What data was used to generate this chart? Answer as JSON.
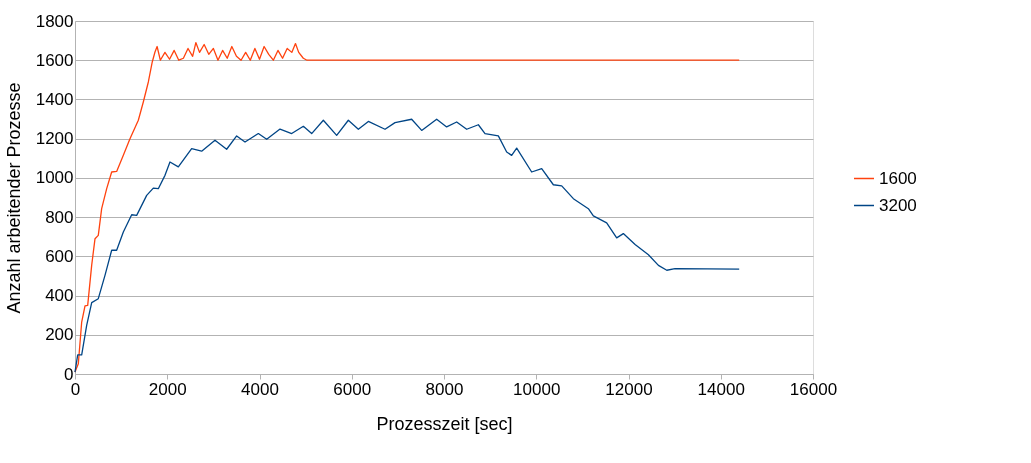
{
  "chart_data": {
    "type": "line",
    "xlabel": "Prozesszeit [sec]",
    "ylabel": "Anzahl arbeitender Prozesse",
    "xlim": [
      0,
      16000
    ],
    "xticks": [
      0,
      2000,
      4000,
      6000,
      8000,
      10000,
      12000,
      14000,
      16000
    ],
    "ylim": [
      0,
      1800
    ],
    "yticks": [
      0,
      200,
      400,
      600,
      800,
      1000,
      1200,
      1400,
      1600,
      1800
    ],
    "grid": "y",
    "legend": "right",
    "marker": "none",
    "line_style": "solid",
    "series": [
      {
        "name": "1600",
        "color": "#ff420e",
        "x": [
          0,
          72,
          145,
          217,
          275,
          362,
          434,
          505,
          578,
          687,
          795,
          903,
          1048,
          1192,
          1373,
          1481,
          1590,
          1675,
          1734,
          1780,
          1850,
          1950,
          2050,
          2150,
          2250,
          2350,
          2450,
          2550,
          2620,
          2700,
          2800,
          2900,
          3000,
          3100,
          3200,
          3300,
          3400,
          3500,
          3600,
          3700,
          3800,
          3900,
          4000,
          4100,
          4200,
          4300,
          4400,
          4500,
          4600,
          4700,
          4780,
          4850,
          4950,
          5030,
          14400
        ],
        "values": [
          10,
          52,
          265,
          347,
          350,
          555,
          690,
          707,
          843,
          945,
          1030,
          1033,
          1115,
          1200,
          1294,
          1387,
          1489,
          1591,
          1642,
          1670,
          1600,
          1640,
          1605,
          1650,
          1600,
          1610,
          1660,
          1620,
          1690,
          1640,
          1680,
          1630,
          1660,
          1600,
          1650,
          1610,
          1670,
          1620,
          1600,
          1640,
          1600,
          1660,
          1605,
          1670,
          1630,
          1600,
          1650,
          1610,
          1660,
          1640,
          1685,
          1640,
          1610,
          1600,
          1600
        ]
      },
      {
        "name": "3200",
        "color": "#004586",
        "x": [
          0,
          58,
          145,
          253,
          362,
          505,
          650,
          795,
          903,
          1048,
          1229,
          1337,
          1554,
          1698,
          1806,
          1951,
          2059,
          2240,
          2529,
          2746,
          3035,
          3288,
          3505,
          3686,
          3975,
          4156,
          4445,
          4698,
          4951,
          5131,
          5384,
          5673,
          5926,
          6143,
          6360,
          6721,
          6938,
          7299,
          7516,
          7841,
          8058,
          8275,
          8492,
          8745,
          8889,
          9178,
          9359,
          9467,
          9576,
          9901,
          10118,
          10371,
          10552,
          10805,
          11130,
          11238,
          11527,
          11744,
          11888,
          12143,
          12432,
          12649,
          12830,
          13009,
          14400
        ],
        "values": [
          10,
          98,
          98,
          248,
          364,
          384,
          503,
          631,
          631,
          724,
          812,
          809,
          911,
          948,
          945,
          1013,
          1081,
          1056,
          1149,
          1136,
          1192,
          1146,
          1214,
          1183,
          1226,
          1197,
          1249,
          1226,
          1263,
          1226,
          1294,
          1217,
          1294,
          1248,
          1288,
          1248,
          1282,
          1299,
          1242,
          1299,
          1260,
          1285,
          1248,
          1271,
          1226,
          1214,
          1132,
          1115,
          1152,
          1030,
          1047,
          965,
          959,
          894,
          843,
          806,
          771,
          694,
          716,
          660,
          608,
          554,
          529,
          537,
          535
        ]
      }
    ]
  }
}
